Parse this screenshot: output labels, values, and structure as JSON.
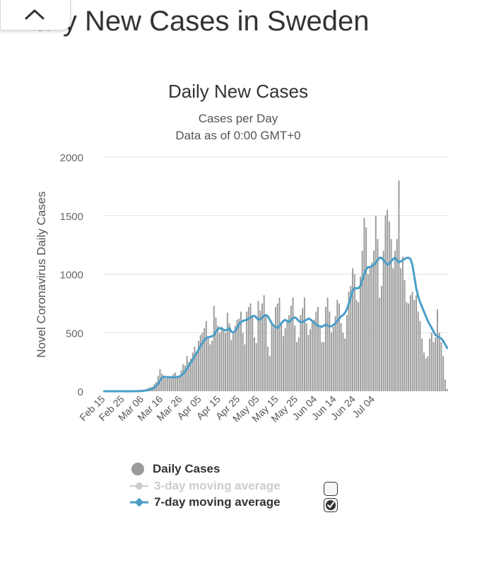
{
  "page": {
    "heading": "Daily New Cases in Sweden"
  },
  "colors": {
    "bars": "#999999",
    "line": "#4a9ec8",
    "grid": "#e3e3e3",
    "disabled": "#cccccc"
  },
  "chart_data": {
    "type": "bar",
    "title": "Daily New Cases",
    "subtitle_lines": [
      "Cases per Day",
      "Data as of 0:00 GMT+0"
    ],
    "ylabel": "Novel Coronavirus Daily Cases",
    "xlabel": "",
    "ylim": [
      0,
      2000
    ],
    "yticks": [
      0,
      500,
      1000,
      1500,
      2000
    ],
    "start_date": "Feb 15",
    "x_tick_labels": [
      "Feb 15",
      "Feb 25",
      "Mar 06",
      "Mar 16",
      "Mar 26",
      "Apr 05",
      "Apr 15",
      "Apr 25",
      "May 05",
      "May 15",
      "May 25",
      "Jun 04",
      "Jun 14",
      "Jun 24",
      "Jul 04"
    ],
    "series": [
      {
        "name": "Daily Cases",
        "type": "bar",
        "values": [
          0,
          0,
          0,
          0,
          0,
          0,
          0,
          0,
          0,
          0,
          0,
          0,
          0,
          1,
          0,
          0,
          0,
          1,
          2,
          5,
          10,
          15,
          20,
          30,
          35,
          40,
          60,
          80,
          130,
          190,
          150,
          120,
          110,
          130,
          110,
          120,
          150,
          160,
          120,
          130,
          180,
          230,
          220,
          300,
          250,
          280,
          330,
          380,
          330,
          430,
          480,
          500,
          540,
          600,
          470,
          400,
          430,
          730,
          630,
          560,
          500,
          550,
          520,
          500,
          670,
          580,
          440,
          490,
          560,
          610,
          620,
          680,
          500,
          400,
          680,
          720,
          750,
          650,
          460,
          410,
          770,
          690,
          750,
          820,
          660,
          380,
          300,
          570,
          560,
          720,
          750,
          800,
          580,
          470,
          540,
          600,
          650,
          730,
          800,
          560,
          420,
          460,
          650,
          710,
          800,
          580,
          480,
          530,
          590,
          610,
          680,
          720,
          560,
          420,
          420,
          720,
          800,
          680,
          500,
          550,
          640,
          780,
          750,
          580,
          500,
          450,
          650,
          850,
          900,
          1050,
          1000,
          780,
          760,
          980,
          1200,
          1480,
          1400,
          1000,
          1050,
          1100,
          1200,
          1500,
          1300,
          800,
          900,
          1200,
          1500,
          1550,
          1450,
          1300,
          1050,
          1200,
          1300,
          1800,
          1050,
          1150,
          950,
          760,
          750,
          820,
          850,
          780,
          820,
          680,
          600,
          450,
          330,
          280,
          300,
          450,
          500,
          420,
          460,
          700,
          500,
          420,
          300,
          100,
          20
        ]
      },
      {
        "name": "3-day moving average",
        "type": "line",
        "enabled": false,
        "values": []
      },
      {
        "name": "7-day moving average",
        "type": "line",
        "enabled": true,
        "values": [
          0,
          0,
          0,
          0,
          0,
          0,
          0,
          0,
          0,
          0,
          0,
          0,
          0,
          0,
          0,
          0,
          0,
          1,
          1,
          2,
          3,
          5,
          7,
          10,
          15,
          20,
          30,
          45,
          65,
          90,
          115,
          125,
          122,
          120,
          120,
          120,
          120,
          120,
          122,
          125,
          135,
          150,
          170,
          195,
          220,
          245,
          270,
          300,
          325,
          355,
          385,
          410,
          435,
          455,
          460,
          465,
          470,
          480,
          510,
          530,
          540,
          535,
          525,
          520,
          525,
          540,
          510,
          500,
          515,
          540,
          570,
          590,
          600,
          605,
          610,
          620,
          630,
          640,
          645,
          630,
          610,
          615,
          630,
          645,
          650,
          640,
          610,
          580,
          560,
          550,
          540,
          560,
          580,
          600,
          610,
          600,
          590,
          610,
          625,
          630,
          620,
          600,
          590,
          590,
          600,
          610,
          620,
          615,
          600,
          585,
          570,
          560,
          555,
          550,
          560,
          570,
          560,
          555,
          555,
          565,
          580,
          600,
          620,
          640,
          650,
          670,
          700,
          750,
          800,
          860,
          880,
          880,
          880,
          900,
          950,
          1000,
          1040,
          1060,
          1060,
          1070,
          1080,
          1100,
          1120,
          1140,
          1140,
          1120,
          1100,
          1080,
          1090,
          1110,
          1130,
          1140,
          1120,
          1100,
          1110,
          1120,
          1130,
          1140,
          1140,
          1130,
          1080,
          980,
          880,
          810,
          760,
          720,
          680,
          640,
          600,
          570,
          540,
          510,
          480,
          470,
          460,
          450,
          430,
          400,
          370
        ]
      }
    ]
  },
  "legend": {
    "items": [
      {
        "label": "Daily Cases"
      },
      {
        "label": "3-day moving average"
      },
      {
        "label": "7-day moving average"
      }
    ],
    "checkbox_3day_checked": false,
    "checkbox_7day_checked": true
  }
}
